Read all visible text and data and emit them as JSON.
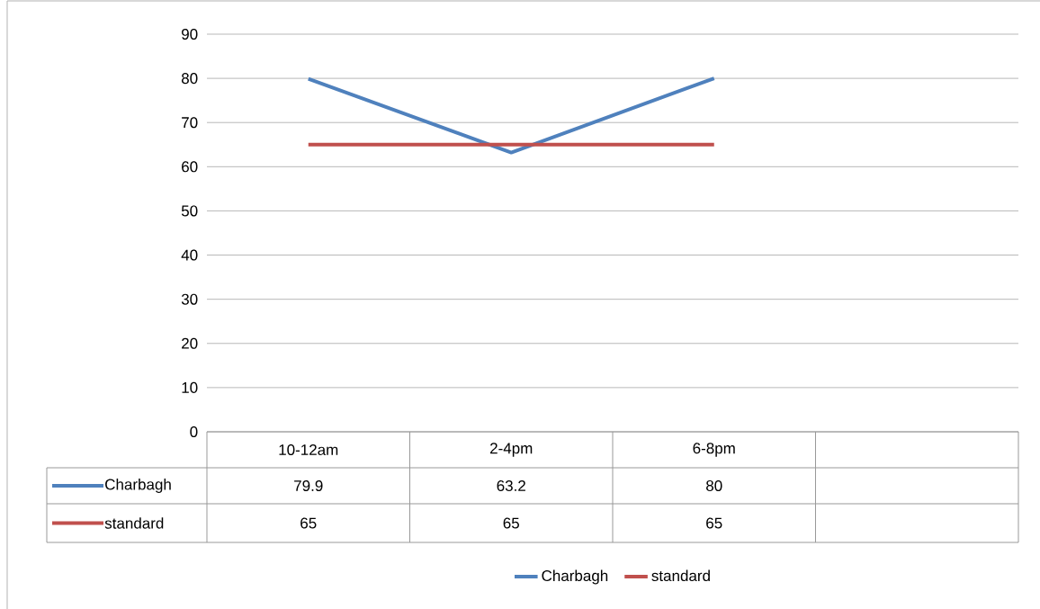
{
  "chart_data": {
    "type": "line",
    "categories": [
      "10-12am",
      "2-4pm",
      "6-8pm",
      null
    ],
    "series": [
      {
        "name": "Charbagh",
        "color": "#4f81bd",
        "values": [
          79.9,
          63.2,
          80,
          null
        ]
      },
      {
        "name": "standard",
        "color": "#c0504d",
        "values": [
          65,
          65,
          65,
          null
        ]
      }
    ],
    "ylim": [
      0,
      90
    ],
    "yticks": [
      0,
      10,
      20,
      30,
      40,
      50,
      60,
      70,
      80,
      90
    ],
    "grid": "y",
    "legend": "bottom",
    "data_labels": true,
    "marker": "none",
    "line_style": "solid"
  }
}
